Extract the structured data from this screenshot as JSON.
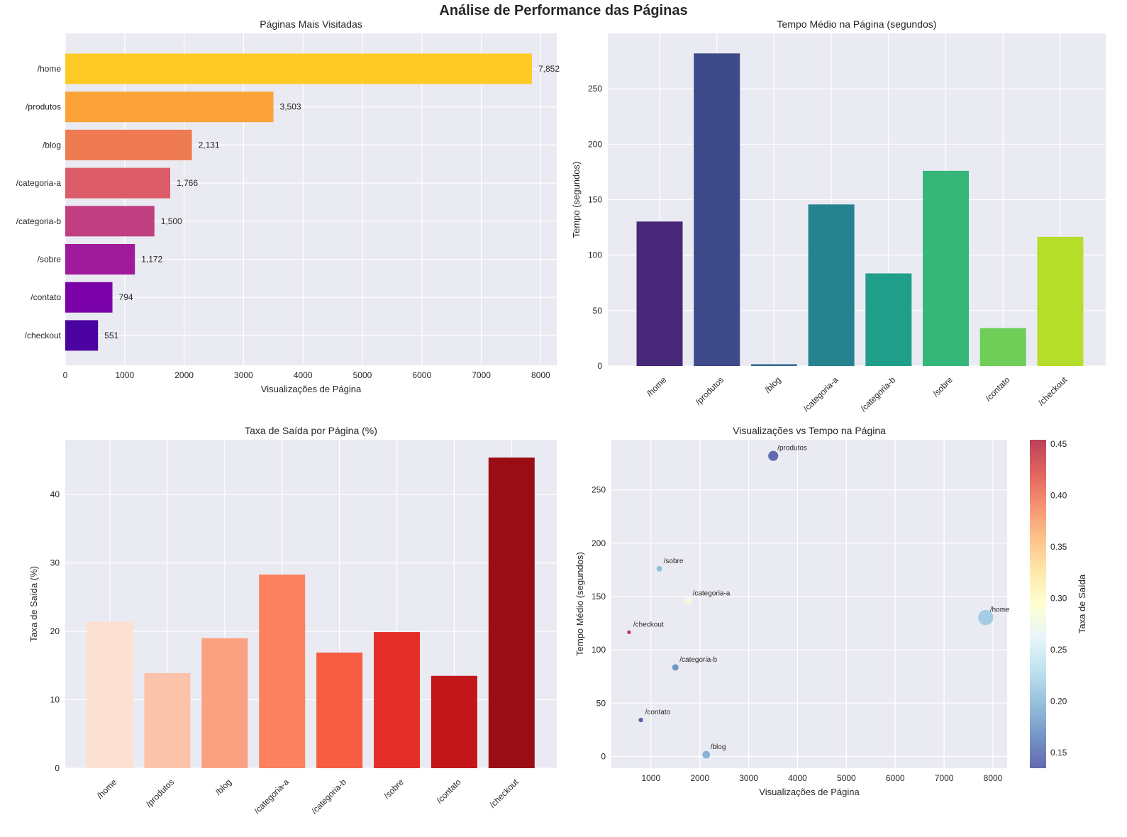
{
  "suptitle": "Análise de Performance das Páginas",
  "chart_data": [
    {
      "type": "bar",
      "orientation": "horizontal",
      "title": "Páginas Mais Visitadas",
      "xlabel": "Visualizações de Página",
      "ylabel": "",
      "categories": [
        "/home",
        "/produtos",
        "/blog",
        "/categoria-a",
        "/categoria-b",
        "/sobre",
        "/contato",
        "/checkout"
      ],
      "values": [
        7852,
        3503,
        2131,
        1766,
        1500,
        1172,
        794,
        551
      ],
      "data_labels": [
        "7,852",
        "3,503",
        "2,131",
        "1,766",
        "1,500",
        "1,172",
        "794",
        "551"
      ],
      "xlim": [
        0,
        8270
      ],
      "xticks": [
        0,
        1000,
        2000,
        3000,
        4000,
        5000,
        6000,
        7000,
        8000
      ],
      "grid": true,
      "colors": [
        "#fdca26",
        "#fba238",
        "#ee7b51",
        "#db5c68",
        "#c13f80",
        "#a01a9c",
        "#7a02a8",
        "#4a02a0"
      ]
    },
    {
      "type": "bar",
      "title": "Tempo Médio na Página (segundos)",
      "xlabel": "",
      "ylabel": "Tempo (segundos)",
      "categories": [
        "/home",
        "/produtos",
        "/blog",
        "/categoria-a",
        "/categoria-b",
        "/sobre",
        "/contato",
        "/checkout"
      ],
      "values": [
        130.3,
        281.9,
        1.6,
        145.7,
        83.5,
        176.0,
        34.2,
        116.5
      ],
      "ylim": [
        0,
        300
      ],
      "yticks": [
        0,
        50,
        100,
        150,
        200,
        250
      ],
      "grid": true,
      "colors": [
        "#482878",
        "#3e4a89",
        "#31688e",
        "#26828e",
        "#1f9e89",
        "#35b779",
        "#6ece58",
        "#b5de2b"
      ]
    },
    {
      "type": "bar",
      "title": "Taxa de Saída por Página (%)",
      "xlabel": "",
      "ylabel": "Taxa de Saída (%)",
      "categories": [
        "/home",
        "/produtos",
        "/blog",
        "/categoria-a",
        "/categoria-b",
        "/sobre",
        "/contato",
        "/checkout"
      ],
      "values": [
        21.4,
        13.9,
        19.0,
        28.3,
        16.9,
        19.9,
        13.5,
        45.4
      ],
      "ylim": [
        0,
        48
      ],
      "yticks": [
        0,
        10,
        20,
        30,
        40
      ],
      "grid": true,
      "colors": [
        "#fee0d2",
        "#fcc3ab",
        "#fca082",
        "#fc8161",
        "#f85d42",
        "#e32f27",
        "#c2161b",
        "#9b0d14"
      ]
    },
    {
      "type": "scatter",
      "title": "Visualizações vs Tempo na Página",
      "xlabel": "Visualizações de Página",
      "ylabel": "Tempo Médio (segundos)",
      "points": [
        {
          "label": "/home",
          "x": 7852,
          "y": 130.3,
          "exit_rate": 0.214
        },
        {
          "label": "/produtos",
          "x": 3503,
          "y": 281.9,
          "exit_rate": 0.139
        },
        {
          "label": "/blog",
          "x": 2131,
          "y": 1.6,
          "exit_rate": 0.19
        },
        {
          "label": "/categoria-a",
          "x": 1766,
          "y": 145.7,
          "exit_rate": 0.283
        },
        {
          "label": "/categoria-b",
          "x": 1500,
          "y": 83.5,
          "exit_rate": 0.169
        },
        {
          "label": "/sobre",
          "x": 1172,
          "y": 176.0,
          "exit_rate": 0.199
        },
        {
          "label": "/contato",
          "x": 794,
          "y": 34.2,
          "exit_rate": 0.135
        },
        {
          "label": "/checkout",
          "x": 551,
          "y": 116.5,
          "exit_rate": 0.454
        }
      ],
      "size_encoding": "Visualizações de Página",
      "xlim": [
        190,
        8290
      ],
      "ylim": [
        -11,
        297
      ],
      "xticks": [
        1000,
        2000,
        3000,
        4000,
        5000,
        6000,
        7000,
        8000
      ],
      "yticks": [
        0,
        50,
        100,
        150,
        200,
        250
      ],
      "grid": true,
      "colorbar": {
        "label": "Taxa de Saída",
        "colormap": "RdYlBu_r",
        "range": [
          0.135,
          0.454
        ],
        "ticks": [
          "0.15",
          "0.20",
          "0.25",
          "0.30",
          "0.35",
          "0.40",
          "0.45"
        ],
        "stops": [
          "#313695",
          "#4575b4",
          "#74add1",
          "#abd9e9",
          "#e0f3f8",
          "#ffffbf",
          "#fee090",
          "#fdae61",
          "#f46d43",
          "#d73027",
          "#a50026"
        ]
      }
    }
  ]
}
